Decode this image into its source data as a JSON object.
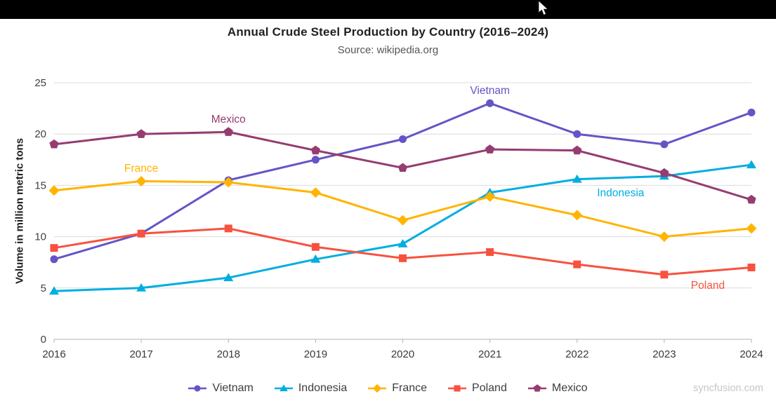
{
  "chart_data": {
    "type": "line",
    "title": "Annual Crude Steel Production by Country (2016–2024)",
    "subtitle": "Source: wikipedia.org",
    "ylabel": "Volume in million metric tons",
    "xlabel": "",
    "x": [
      2016,
      2017,
      2018,
      2019,
      2020,
      2021,
      2022,
      2023,
      2024
    ],
    "ylim": [
      0,
      25
    ],
    "y_ticks": [
      0,
      5,
      10,
      15,
      20,
      25
    ],
    "grid": "horizontal-only",
    "legend_position": "bottom",
    "series": [
      {
        "name": "Vietnam",
        "color": "#6355C7",
        "marker": "circle",
        "values": [
          7.8,
          10.3,
          15.5,
          17.5,
          19.5,
          23.0,
          20.0,
          19.0,
          22.1
        ]
      },
      {
        "name": "Indonesia",
        "color": "#00AEE0",
        "marker": "triangle",
        "values": [
          4.7,
          5.0,
          6.0,
          7.8,
          9.3,
          14.3,
          15.6,
          15.9,
          17.0
        ]
      },
      {
        "name": "France",
        "color": "#FFB400",
        "marker": "diamond",
        "values": [
          14.5,
          15.4,
          15.3,
          14.3,
          11.6,
          13.9,
          12.1,
          10.0,
          10.8
        ]
      },
      {
        "name": "Poland",
        "color": "#F7523F",
        "marker": "square",
        "values": [
          8.9,
          10.3,
          10.8,
          9.0,
          7.9,
          8.5,
          7.3,
          6.3,
          7.0
        ]
      },
      {
        "name": "Mexico",
        "color": "#963C70",
        "marker": "pentagon",
        "values": [
          19.0,
          20.0,
          20.2,
          18.4,
          16.7,
          18.5,
          18.4,
          16.2,
          13.6
        ]
      }
    ]
  },
  "watermark": "syncfusion.com"
}
